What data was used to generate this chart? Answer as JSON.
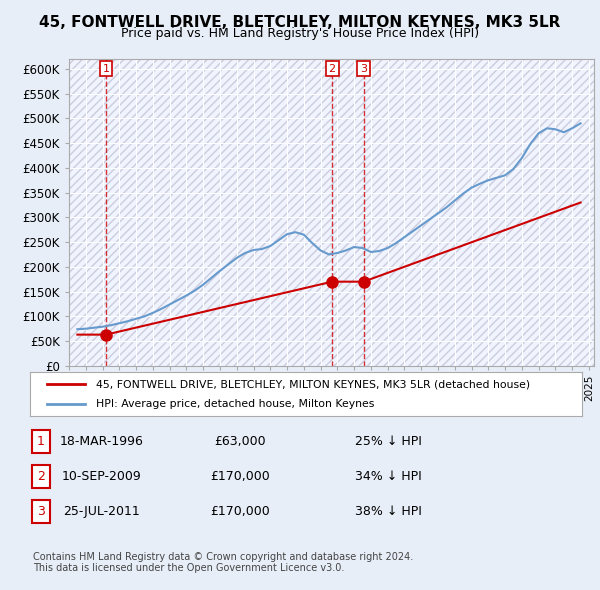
{
  "title": "45, FONTWELL DRIVE, BLETCHLEY, MILTON KEYNES, MK3 5LR",
  "subtitle": "Price paid vs. HM Land Registry's House Price Index (HPI)",
  "legend_line1": "45, FONTWELL DRIVE, BLETCHLEY, MILTON KEYNES, MK3 5LR (detached house)",
  "legend_line2": "HPI: Average price, detached house, Milton Keynes",
  "table_rows": [
    {
      "num": "1",
      "date": "18-MAR-1996",
      "price": "£63,000",
      "hpi": "25% ↓ HPI"
    },
    {
      "num": "2",
      "date": "10-SEP-2009",
      "price": "£170,000",
      "hpi": "34% ↓ HPI"
    },
    {
      "num": "3",
      "date": "25-JUL-2011",
      "price": "£170,000",
      "hpi": "38% ↓ HPI"
    }
  ],
  "footer1": "Contains HM Land Registry data © Crown copyright and database right 2024.",
  "footer2": "This data is licensed under the Open Government Licence v3.0.",
  "sale_color": "#cc0000",
  "hpi_color": "#6699cc",
  "background_color": "#e8eef8",
  "plot_bg_color": "#f0f4ff",
  "hatch_color": "#ccccdd",
  "ylim": [
    0,
    620000
  ],
  "yticks": [
    0,
    50000,
    100000,
    150000,
    200000,
    250000,
    300000,
    350000,
    400000,
    450000,
    500000,
    550000,
    600000
  ],
  "sale_dates": [
    1996.21,
    2009.69,
    2011.56
  ],
  "sale_prices": [
    63000,
    170000,
    170000
  ],
  "hpi_years": [
    1994.5,
    1995.0,
    1995.5,
    1996.0,
    1996.5,
    1997.0,
    1997.5,
    1998.0,
    1998.5,
    1999.0,
    1999.5,
    2000.0,
    2000.5,
    2001.0,
    2001.5,
    2002.0,
    2002.5,
    2003.0,
    2003.5,
    2004.0,
    2004.5,
    2005.0,
    2005.5,
    2006.0,
    2006.5,
    2007.0,
    2007.5,
    2008.0,
    2008.5,
    2009.0,
    2009.5,
    2010.0,
    2010.5,
    2011.0,
    2011.5,
    2012.0,
    2012.5,
    2013.0,
    2013.5,
    2014.0,
    2014.5,
    2015.0,
    2015.5,
    2016.0,
    2016.5,
    2017.0,
    2017.5,
    2018.0,
    2018.5,
    2019.0,
    2019.5,
    2020.0,
    2020.5,
    2021.0,
    2021.5,
    2022.0,
    2022.5,
    2023.0,
    2023.5,
    2024.0,
    2024.5
  ],
  "hpi_values": [
    74000,
    75000,
    77000,
    79000,
    82000,
    86000,
    90000,
    95000,
    100000,
    107000,
    115000,
    124000,
    133000,
    142000,
    152000,
    164000,
    178000,
    192000,
    205000,
    218000,
    228000,
    234000,
    236000,
    242000,
    254000,
    266000,
    270000,
    265000,
    248000,
    233000,
    225000,
    228000,
    233000,
    240000,
    238000,
    230000,
    232000,
    238000,
    248000,
    260000,
    272000,
    284000,
    296000,
    308000,
    320000,
    334000,
    348000,
    360000,
    368000,
    375000,
    380000,
    385000,
    398000,
    420000,
    448000,
    470000,
    480000,
    478000,
    472000,
    480000,
    490000
  ],
  "sale_line_years": [
    1994.5,
    1996.21,
    2009.69,
    2011.56,
    2024.5
  ],
  "sale_line_values": [
    63000,
    63000,
    170000,
    170000,
    330000
  ],
  "vline_dates": [
    1996.21,
    2009.69,
    2011.56
  ],
  "xmin": 1994.0,
  "xmax": 2025.3
}
